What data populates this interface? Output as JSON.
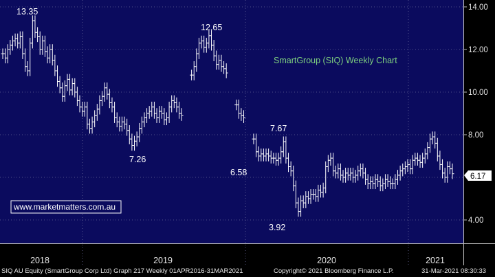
{
  "chart_data": {
    "type": "bar",
    "ohlc_style": "weekly-bars",
    "title": "SmartGroup (SIQ) Weekly Chart",
    "ylim": [
      3.4,
      14.4
    ],
    "y_ticks": [
      "14.00",
      "12.00",
      "10.00",
      "8.00",
      "4.00"
    ],
    "x_labels": [
      "2018",
      "2019",
      "2020",
      "2021"
    ],
    "last_price": "6.17",
    "website": "www.marketmatters.com.au",
    "colors": {
      "background": "#0b0b5e",
      "bars": "#ffffff",
      "title": "#7fd27f",
      "axis_bg": "#000000",
      "grid": "#6a6a9a"
    },
    "annotations": [
      {
        "text": "13.35",
        "x": "2017-11",
        "y": 13.35
      },
      {
        "text": "12.65",
        "x": "2019-07",
        "y": 12.65
      },
      {
        "text": "7.26",
        "x": "2018-10",
        "y": 7.26
      },
      {
        "text": "7.67",
        "x": "2020-03",
        "y": 7.67
      },
      {
        "text": "6.58",
        "x": "2020-01",
        "y": 6.58
      },
      {
        "text": "3.92",
        "x": "2020-03",
        "y": 3.92
      }
    ],
    "series": [
      {
        "values": [
          11.8,
          11.6,
          12.0,
          12.2,
          12.4,
          12.5,
          12.3,
          12.6,
          11.8,
          11.2,
          11.0,
          12.3,
          13.35,
          12.8,
          12.6,
          12.0,
          12.4,
          11.9,
          11.6,
          12.0,
          11.5,
          11.0,
          10.5,
          10.2,
          9.8,
          10.3,
          10.6,
          10.1,
          10.4,
          10.0,
          9.6,
          9.3,
          9.1,
          9.3,
          8.5,
          8.3,
          8.6,
          8.9,
          9.2,
          9.6,
          9.8,
          10.2,
          9.9,
          9.5,
          9.3,
          8.8,
          8.6,
          8.4,
          8.6,
          8.5,
          8.2,
          7.8,
          7.5,
          7.7,
          7.9,
          8.3,
          8.6,
          8.8,
          9.0,
          9.1,
          9.3,
          9.0,
          8.8,
          9.1,
          9.0,
          8.7,
          8.8,
          9.3,
          9.6,
          9.5,
          9.3,
          9.0,
          8.9,
          null,
          null,
          null,
          10.8,
          11.2,
          11.8,
          12.3,
          12.4,
          12.1,
          12.3,
          12.65,
          12.2,
          11.7,
          11.3,
          11.5,
          11.2,
          11.1,
          10.9,
          null,
          null,
          null,
          9.4,
          9.0,
          8.9,
          8.8,
          null,
          null,
          null,
          7.8,
          7.2,
          7.0,
          7.1,
          7.0,
          7.1,
          7.0,
          6.9,
          6.9,
          6.8,
          6.9,
          7.2,
          7.67,
          6.9,
          6.5,
          6.3,
          5.6,
          4.8,
          4.4,
          4.9,
          4.8,
          5.1,
          5.0,
          5.2,
          5.2,
          5.1,
          5.4,
          5.3,
          5.5,
          6.5,
          6.8,
          6.9,
          6.3,
          6.2,
          6.4,
          6.1,
          6.0,
          6.2,
          6.1,
          6.2,
          6.0,
          6.1,
          6.3,
          6.4,
          6.2,
          5.9,
          5.7,
          5.8,
          5.7,
          5.9,
          5.8,
          5.6,
          5.7,
          5.9,
          5.8,
          5.7,
          5.7,
          5.9,
          6.1,
          6.3,
          6.4,
          6.5,
          6.6,
          6.4,
          6.8,
          6.9,
          6.8,
          6.7,
          6.9,
          7.1,
          7.4,
          7.8,
          7.9,
          7.6,
          7.0,
          6.6,
          6.2,
          6.0,
          6.5,
          6.4,
          6.17
        ]
      }
    ]
  },
  "footer": {
    "left": "SIQ AU Equity (SmartGroup Corp Ltd) Graph 217  Weekly 01APR2016-31MAR2021",
    "center": "Copyright© 2021 Bloomberg Finance L.P.",
    "right": "31-Mar-2021 08:30:33"
  }
}
